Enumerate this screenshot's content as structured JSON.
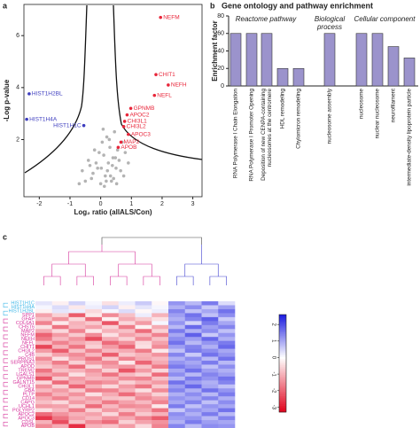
{
  "chart_data": [
    {
      "type": "scatter",
      "panel": "a",
      "xlabel": "Log₂ ratio (allALS/Con)",
      "ylabel": "-Log p-value",
      "xlim": [
        -2.5,
        3.3
      ],
      "ylim": [
        -0.2,
        7.2
      ],
      "xticks": [
        -2,
        -1,
        0,
        1,
        2,
        3
      ],
      "yticks": [
        2,
        4,
        6
      ],
      "series": [
        {
          "color": "#b3b3b3",
          "x": [
            -0.6,
            -0.4,
            -0.3,
            -0.2,
            -0.1,
            0,
            0.05,
            0.1,
            0.15,
            0.2,
            0.25,
            0.3,
            0.35,
            0.4,
            0.45,
            0.5,
            0.55,
            0.6,
            0.7,
            0.8,
            -0.5,
            -0.25,
            -0.15,
            0.02,
            0.12,
            0.22,
            0.32,
            0.42,
            0.52,
            0.65,
            -0.35,
            -0.05,
            0.08,
            0.18,
            0.28,
            0.38,
            0.48,
            0.75,
            0.9,
            -0.7
          ],
          "values": [
            0.8,
            1.2,
            0.5,
            1.6,
            0.9,
            0.3,
            1.9,
            1.4,
            0.6,
            2.1,
            1.1,
            1.7,
            0.4,
            1.3,
            2.3,
            0.9,
            1.6,
            1.2,
            1.9,
            1.5,
            0.4,
            0.7,
            1.1,
            0.9,
            0.2,
            0.8,
            0.6,
            0.5,
            0.3,
            0.8,
            1.0,
            1.5,
            2.4,
            0.4,
            2.0,
            1.0,
            1.3,
            0.6,
            1.1,
            0.3
          ]
        },
        {
          "color": "#e8263a",
          "labels": [
            "NEFM",
            "CHIT1",
            "NEFH",
            "NEFL",
            "GPNMB",
            "APOC2",
            "CHI3L1",
            "CHI3L2",
            "APOC3",
            "MAP2",
            "APOB"
          ],
          "x": [
            1.95,
            1.8,
            2.2,
            1.75,
            0.98,
            0.86,
            0.78,
            0.75,
            0.9,
            0.66,
            0.57
          ],
          "values": [
            6.7,
            4.5,
            4.1,
            3.7,
            3.2,
            2.95,
            2.7,
            2.5,
            2.2,
            1.9,
            1.7
          ]
        },
        {
          "color": "#3d3dbf",
          "labels": [
            "HIST1H2BL",
            "HIST1H4A",
            "HIST1H1C"
          ],
          "x": [
            -2.33,
            -2.41,
            -0.55
          ],
          "values": [
            3.76,
            2.78,
            2.54
          ]
        }
      ]
    },
    {
      "type": "bar",
      "panel": "b",
      "title": "Gene ontology and pathway enrichment",
      "ylabel": "Enrichment factor",
      "groups": [
        "Reactome pathway",
        [
          "Biological",
          "process"
        ],
        "Cellular component"
      ],
      "categories": [
        "RNA Polymerase I Chain Elongation",
        "RNA Polymerase I Promoter Opening",
        [
          "Deposition of new CENPA-containing",
          "nucleosomes at the centromere"
        ],
        "HDL remodeling",
        "Chylomicron remodeling",
        "nucleosome assembly",
        "nucleosome",
        "nuclear nucleosome",
        "neurofilament",
        "intermediate-density lipoprotein particle"
      ],
      "values": [
        60,
        60,
        60,
        20,
        20,
        60,
        60,
        60,
        45,
        32
      ],
      "color": "#9b93cc",
      "ylim": [
        0,
        80
      ],
      "yticks": [
        0,
        20,
        40,
        60,
        80
      ]
    },
    {
      "type": "heatmap",
      "panel": "c",
      "rows": [
        "HIST1H1C",
        "HIST1H4A",
        "HIST1H2BL",
        "SPP1",
        "GFAP",
        "COL6A1",
        "CHST6",
        "MAP2",
        "NEFM",
        "NEFH",
        "NEFL",
        "CHIT1",
        "CHI3L2",
        "C4B",
        "PROS1",
        "SERPINA3",
        "APOD",
        "TREM2",
        "LGALS1",
        "GPNMB",
        "GALNT15",
        "CHI3L1",
        "GBA",
        "PLTP",
        "CD14",
        "CAPG",
        "UCHL1",
        "PGLYRP2",
        "APOC2",
        "APOC3",
        "CDSL",
        "APOB"
      ],
      "row_colors": [
        "#40b8e8",
        "#40b8e8",
        "#40b8e8",
        "#d6339b",
        "#d6339b",
        "#d6339b",
        "#d6339b",
        "#d6339b",
        "#d6339b",
        "#d6339b",
        "#d6339b",
        "#d6339b",
        "#d6339b",
        "#d6339b",
        "#d6339b",
        "#d6339b",
        "#d6339b",
        "#d6339b",
        "#d6339b",
        "#d6339b",
        "#d6339b",
        "#d6339b",
        "#d6339b",
        "#d6339b",
        "#d6339b",
        "#d6339b",
        "#d6339b",
        "#d6339b",
        "#d6339b",
        "#d6339b",
        "#d6339b",
        "#d6339b"
      ],
      "colors": {
        "low": "#e0001a",
        "mid": "#ffffff",
        "high": "#1a1ae0"
      },
      "zlim": [
        -3.3,
        2.6
      ],
      "zticks": [
        2,
        1,
        0,
        -1,
        -2,
        -3
      ],
      "values": [
        [
          0.3,
          -0.2,
          0.5,
          0.1,
          -0.4,
          0.2,
          0.6,
          -0.1,
          1.2,
          0.8,
          1.5,
          0.4
        ],
        [
          0.1,
          0.4,
          -0.3,
          0.2,
          0.5,
          -0.2,
          0.3,
          0.1,
          0.9,
          1.3,
          0.6,
          1.1
        ],
        [
          -0.2,
          0.3,
          0.2,
          -0.5,
          0.1,
          0.4,
          -0.1,
          0.2,
          1.4,
          0.7,
          1.0,
          1.6
        ],
        [
          -1.2,
          -0.6,
          -2.1,
          -0.3,
          -1.5,
          -0.8,
          0.2,
          -1.0,
          1.1,
          1.6,
          0.7,
          1.3
        ],
        [
          -0.8,
          -1.4,
          -0.5,
          -1.9,
          -0.2,
          -1.1,
          -0.7,
          -0.4,
          0.9,
          1.4,
          1.8,
          0.6
        ],
        [
          -1.6,
          -0.3,
          -1.0,
          -0.7,
          -2.2,
          -0.5,
          -1.3,
          0.1,
          1.2,
          0.5,
          1.5,
          1.0
        ],
        [
          -0.4,
          -1.8,
          -0.9,
          -1.2,
          -0.6,
          -1.7,
          -0.2,
          -1.1,
          0.8,
          1.7,
          1.1,
          1.4
        ],
        [
          -1.1,
          -0.5,
          -1.6,
          -0.3,
          -1.0,
          -0.8,
          -1.9,
          -0.6,
          1.5,
          0.9,
          1.3,
          0.7
        ],
        [
          -2.0,
          -1.3,
          -0.7,
          -1.5,
          -0.4,
          -1.2,
          -0.9,
          -1.6,
          1.0,
          1.8,
          0.6,
          1.2
        ],
        [
          -1.7,
          -0.9,
          -1.4,
          -2.3,
          -1.1,
          -0.6,
          -1.5,
          -0.8,
          1.3,
          1.1,
          1.7,
          0.9
        ],
        [
          -0.9,
          -1.6,
          -1.1,
          -0.8,
          -1.9,
          -1.4,
          -0.5,
          -1.2,
          1.6,
          0.8,
          1.2,
          1.5
        ],
        [
          -2.4,
          -1.0,
          -1.8,
          -0.6,
          -1.3,
          -2.0,
          -0.4,
          -1.5,
          1.1,
          1.4,
          0.9,
          1.7
        ],
        [
          -1.3,
          -2.1,
          -0.8,
          -1.6,
          -0.9,
          -1.1,
          -1.7,
          -0.3,
          0.7,
          1.5,
          1.3,
          1.0
        ],
        [
          -0.6,
          -1.2,
          -1.5,
          -0.9,
          -2.1,
          -0.7,
          -1.0,
          -1.4,
          1.4,
          0.6,
          1.6,
          1.2
        ],
        [
          -1.5,
          -0.4,
          -1.2,
          -1.8,
          -0.7,
          -1.6,
          -1.1,
          -0.9,
          0.9,
          1.3,
          0.8,
          1.6
        ],
        [
          -1.0,
          -1.7,
          -0.6,
          -1.3,
          -1.5,
          -0.3,
          -2.0,
          -1.1,
          1.2,
          1.0,
          1.5,
          0.8
        ],
        [
          -0.7,
          -1.1,
          -1.9,
          -0.5,
          -1.2,
          -1.4,
          -0.8,
          -1.7,
          1.5,
          1.2,
          0.7,
          1.3
        ],
        [
          -1.8,
          -0.8,
          -1.0,
          -1.4,
          -0.6,
          -2.2,
          -1.3,
          -0.5,
          1.0,
          1.6,
          1.1,
          0.9
        ],
        [
          -1.2,
          -1.5,
          -0.4,
          -1.1,
          -1.8,
          -0.9,
          -0.6,
          -1.9,
          1.3,
          0.8,
          1.4,
          1.1
        ],
        [
          -2.2,
          -0.7,
          -1.3,
          -0.9,
          -1.0,
          -1.5,
          -1.6,
          -0.8,
          0.8,
          1.5,
          1.2,
          1.6
        ],
        [
          -0.5,
          -1.9,
          -1.1,
          -1.6,
          -1.4,
          -0.6,
          -1.0,
          -1.3,
          1.6,
          1.1,
          0.9,
          1.4
        ],
        [
          -1.4,
          -0.6,
          -2.0,
          -1.0,
          -0.5,
          -1.3,
          -1.8,
          -0.7,
          1.1,
          1.7,
          1.0,
          0.7
        ],
        [
          -0.9,
          -1.3,
          -0.7,
          -1.7,
          -1.6,
          -1.0,
          -0.4,
          -1.5,
          1.4,
          0.9,
          1.6,
          1.2
        ],
        [
          -1.6,
          -1.0,
          -1.4,
          -0.4,
          -1.1,
          -1.9,
          -1.2,
          -0.6,
          0.9,
          1.3,
          0.8,
          1.5
        ],
        [
          -1.1,
          -1.6,
          -0.9,
          -1.3,
          -0.8,
          -0.7,
          -1.5,
          -1.2,
          1.2,
          1.0,
          1.4,
          0.9
        ],
        [
          -0.8,
          -0.5,
          -1.3,
          -1.0,
          -1.7,
          -1.2,
          -0.9,
          -1.6,
          1.0,
          1.4,
          0.7,
          1.3
        ],
        [
          -1.3,
          -1.2,
          -0.6,
          -1.9,
          -0.9,
          -1.5,
          -1.4,
          -0.3,
          1.5,
          0.7,
          1.2,
          1.0
        ],
        [
          -0.4,
          -0.9,
          -1.7,
          -0.6,
          -1.3,
          -0.8,
          -1.1,
          -1.8,
          0.6,
          1.2,
          1.0,
          1.6
        ],
        [
          -1.9,
          -1.4,
          -1.0,
          -1.2,
          -0.5,
          -1.7,
          -0.7,
          -1.0,
          1.3,
          0.9,
          1.5,
          0.8
        ],
        [
          -2.6,
          -1.8,
          -1.2,
          -0.9,
          -1.4,
          -1.1,
          -1.6,
          -2.1,
          1.1,
          1.2,
          0.8,
          1.4
        ],
        [
          -1.0,
          -2.3,
          -0.8,
          -1.5,
          -1.9,
          -0.6,
          -1.2,
          -1.4,
          0.9,
          1.5,
          1.1,
          1.0
        ],
        [
          -1.5,
          -1.1,
          -2.7,
          -1.0,
          -0.8,
          -1.3,
          -0.5,
          -1.6,
          1.4,
          0.8,
          1.3,
          1.2
        ]
      ]
    }
  ]
}
